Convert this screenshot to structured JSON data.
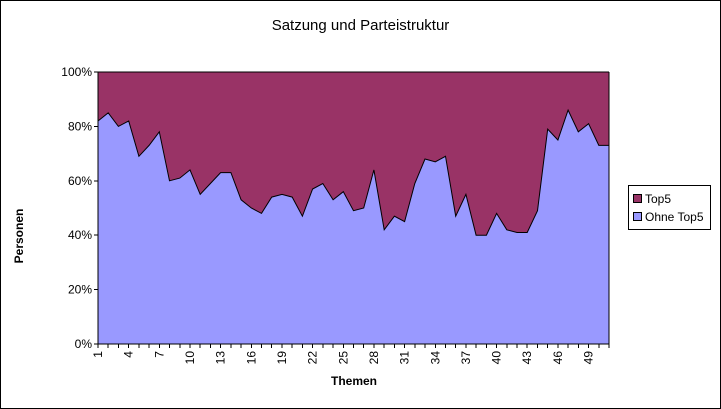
{
  "chart": {
    "title": "Satzung und Parteistruktur",
    "ylabel": "Personen",
    "xlabel": "Themen",
    "legend": [
      {
        "label": "Top5",
        "color": "#993366"
      },
      {
        "label": "Ohne Top5",
        "color": "#9999FF"
      }
    ]
  },
  "chart_data": {
    "type": "area",
    "stacked": "percent",
    "title": "Satzung und Parteistruktur",
    "xlabel": "Themen",
    "ylabel": "Personen",
    "ylim": [
      0,
      100
    ],
    "yticks": [
      "0%",
      "20%",
      "40%",
      "60%",
      "80%",
      "100%"
    ],
    "x": [
      1,
      2,
      3,
      4,
      5,
      6,
      7,
      8,
      9,
      10,
      11,
      12,
      13,
      14,
      15,
      16,
      17,
      18,
      19,
      20,
      21,
      22,
      23,
      24,
      25,
      26,
      27,
      28,
      29,
      30,
      31,
      32,
      33,
      34,
      35,
      36,
      37,
      38,
      39,
      40,
      41,
      42,
      43,
      44,
      45,
      46,
      47,
      48,
      49,
      50,
      51
    ],
    "xtick_labels": [
      "1",
      "4",
      "7",
      "10",
      "13",
      "16",
      "19",
      "22",
      "25",
      "28",
      "31",
      "34",
      "37",
      "40",
      "43",
      "46",
      "49"
    ],
    "legend_position": "right",
    "grid": false,
    "series": [
      {
        "name": "Ohne Top5",
        "color": "#9999FF",
        "values": [
          82,
          85,
          80,
          82,
          69,
          73,
          78,
          60,
          61,
          64,
          55,
          59,
          63,
          63,
          53,
          50,
          48,
          54,
          55,
          54,
          47,
          57,
          59,
          53,
          56,
          49,
          50,
          64,
          42,
          47,
          45,
          59,
          68,
          67,
          69,
          47,
          55,
          40,
          40,
          48,
          42,
          41,
          41,
          49,
          79,
          75,
          86,
          78,
          81,
          73,
          73
        ]
      },
      {
        "name": "Top5",
        "color": "#993366",
        "values": [
          18,
          15,
          20,
          18,
          31,
          27,
          22,
          40,
          39,
          36,
          45,
          41,
          37,
          37,
          47,
          50,
          52,
          46,
          45,
          46,
          53,
          43,
          41,
          47,
          44,
          51,
          50,
          36,
          58,
          53,
          55,
          41,
          32,
          33,
          31,
          53,
          45,
          60,
          60,
          52,
          58,
          59,
          59,
          51,
          21,
          25,
          14,
          22,
          19,
          27,
          27
        ]
      }
    ]
  }
}
